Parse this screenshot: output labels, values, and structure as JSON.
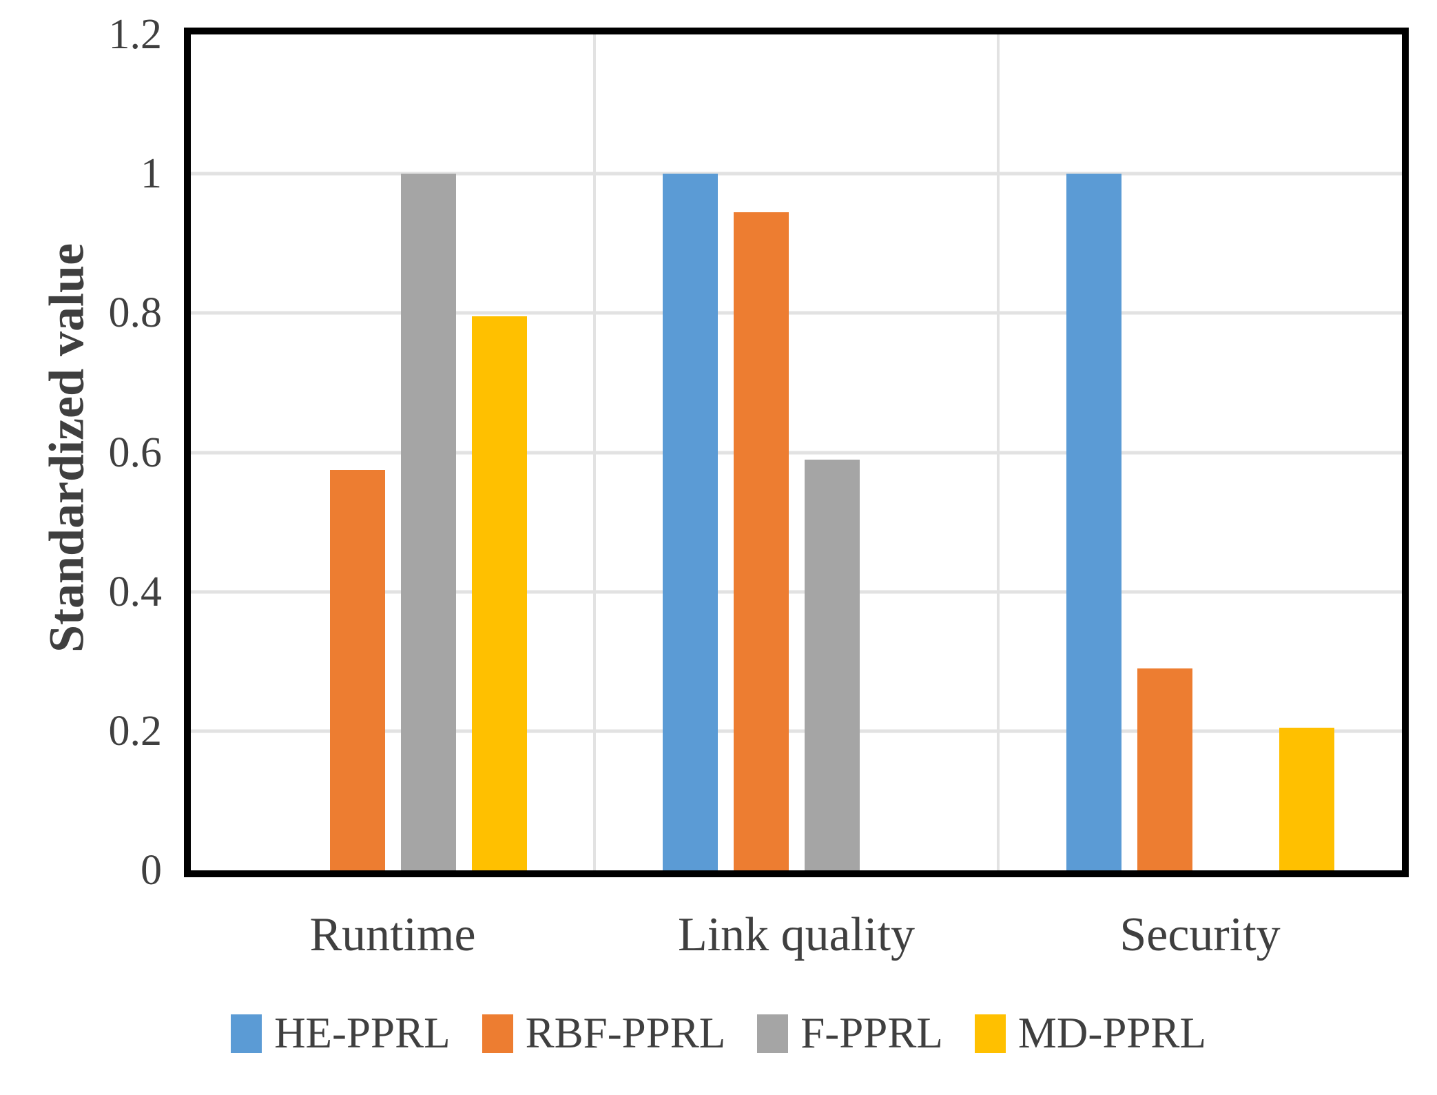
{
  "chart_data": {
    "type": "bar",
    "title": "",
    "xlabel": "",
    "ylabel": "Standardized value",
    "ylim": [
      0,
      1.2
    ],
    "grid": true,
    "legend_position": "bottom",
    "yticks": [
      {
        "label": "0",
        "value": 0
      },
      {
        "label": "0.2",
        "value": 0.2
      },
      {
        "label": "0.4",
        "value": 0.4
      },
      {
        "label": "0.6",
        "value": 0.6
      },
      {
        "label": "0.8",
        "value": 0.8
      },
      {
        "label": "1",
        "value": 1
      },
      {
        "label": "1.2",
        "value": 1.2
      }
    ],
    "categories": [
      "Runtime",
      "Link quality",
      "Security"
    ],
    "series": [
      {
        "name": "HE-PPRL",
        "color": "#5B9BD5",
        "values": [
          0,
          1,
          1
        ]
      },
      {
        "name": "RBF-PPRL",
        "color": "#ED7D31",
        "values": [
          0.575,
          0.945,
          0.29
        ]
      },
      {
        "name": "F-PPRL",
        "color": "#A5A5A5",
        "values": [
          1,
          0.59,
          0
        ]
      },
      {
        "name": "MD-PPRL",
        "color": "#FFC000",
        "values": [
          0.795,
          0,
          0.205
        ]
      }
    ],
    "legend": [
      "HE-PPRL",
      "RBF-PPRL",
      "F-PPRL",
      "MD-PPRL"
    ]
  },
  "styles": {
    "bar_colors": {
      "HE-PPRL": "#5B9BD5",
      "RBF-PPRL": "#ED7D31",
      "F-PPRL": "#A5A5A5",
      "MD-PPRL": "#FFC000"
    },
    "text_color": "#3F3F3F",
    "gridline_color": "#E2E2E2",
    "frame_color": "#000000",
    "background": "#FFFFFF"
  }
}
